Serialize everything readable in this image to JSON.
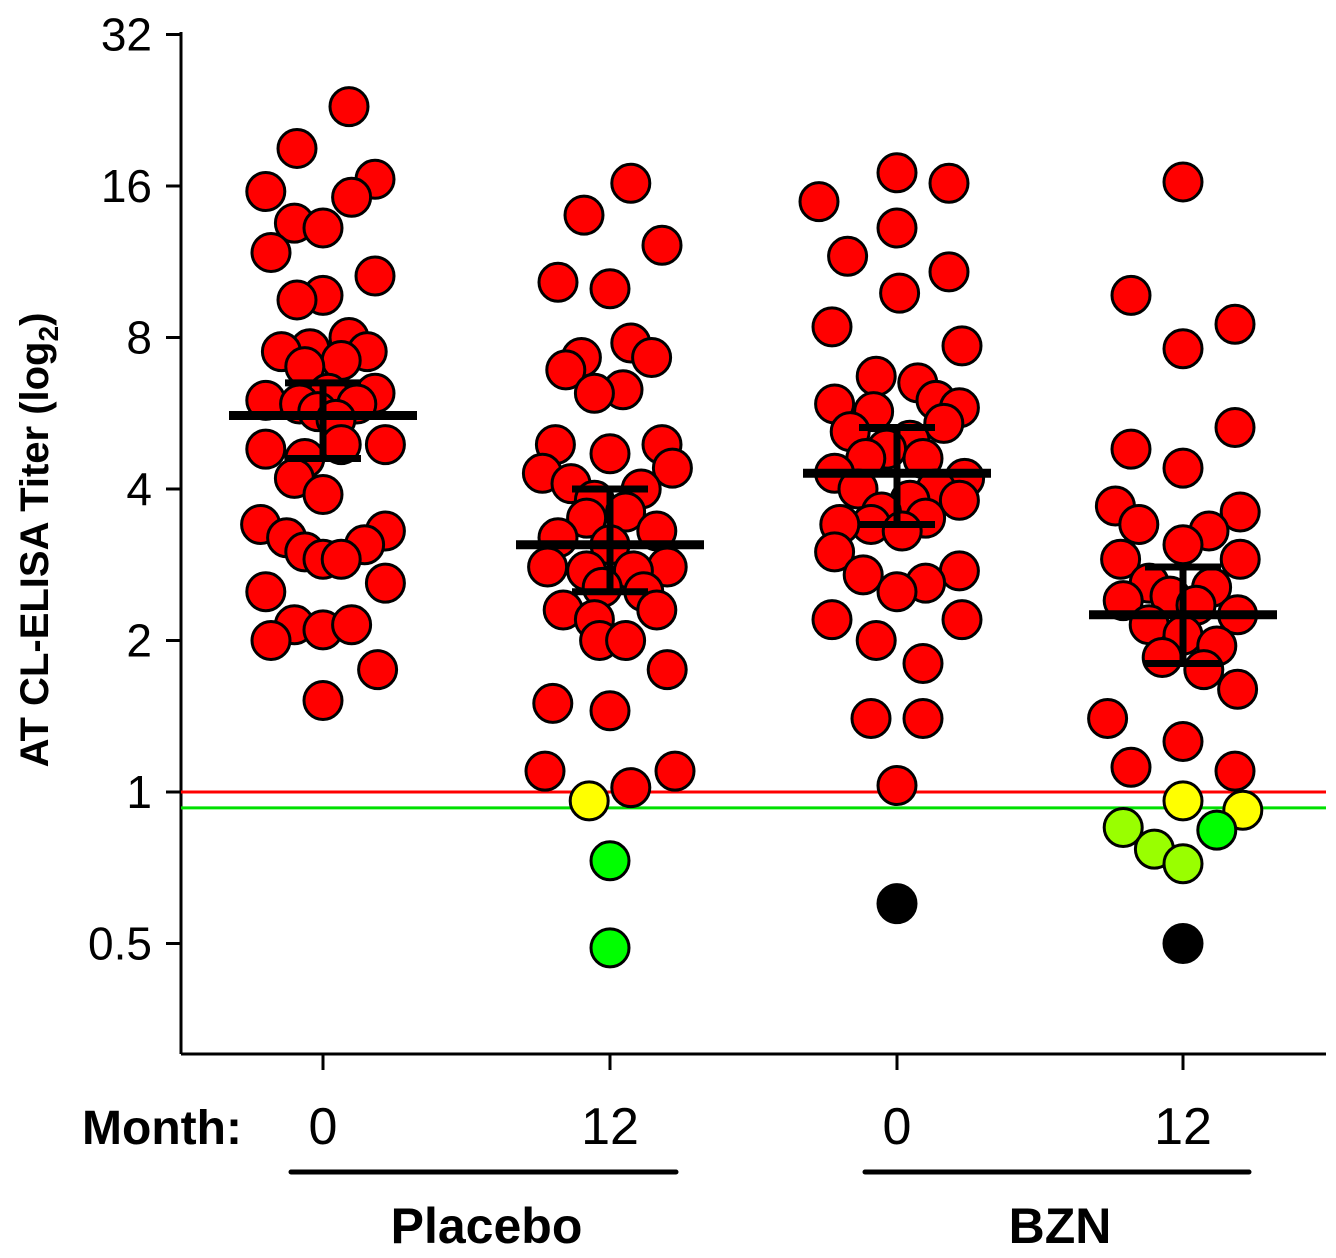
{
  "chart_data": {
    "type": "scatter",
    "scale": "log2",
    "ylabel_main": "AT CL-ELISA Titer (log",
    "ylabel_sub": "2",
    "ylabel_close": ")",
    "xlabel_prefix": "Month:",
    "yticks": [
      0.5,
      1,
      2,
      4,
      8,
      16,
      32
    ],
    "ytick_labels": [
      "0.5",
      "1",
      "2",
      "4",
      "8",
      "16",
      "32"
    ],
    "ylim": [
      0.3,
      32
    ],
    "thresholds": [
      {
        "value": 1.0,
        "color": "#ff0000"
      },
      {
        "value": 0.93,
        "color": "#00e000"
      }
    ],
    "groups": [
      {
        "label": "Placebo",
        "columns": [
          0,
          1
        ]
      },
      {
        "label": "BZN",
        "columns": [
          2,
          3
        ]
      }
    ],
    "columns": [
      {
        "month": "0",
        "mean": 5.6,
        "err_hi": 6.5,
        "err_lo": 4.6,
        "points": [
          {
            "dx": 0.1,
            "y": 23.0,
            "c": "red"
          },
          {
            "dx": -0.1,
            "y": 19.0,
            "c": "red"
          },
          {
            "dx": 0.2,
            "y": 16.5,
            "c": "red"
          },
          {
            "dx": -0.22,
            "y": 15.6,
            "c": "red"
          },
          {
            "dx": 0.11,
            "y": 15.2,
            "c": "red"
          },
          {
            "dx": -0.11,
            "y": 13.5,
            "c": "red"
          },
          {
            "dx": 0.0,
            "y": 13.2,
            "c": "red"
          },
          {
            "dx": -0.2,
            "y": 11.8,
            "c": "red"
          },
          {
            "dx": 0.2,
            "y": 10.6,
            "c": "red"
          },
          {
            "dx": 0.0,
            "y": 9.7,
            "c": "red"
          },
          {
            "dx": -0.1,
            "y": 9.5,
            "c": "red"
          },
          {
            "dx": 0.1,
            "y": 8.0,
            "c": "red"
          },
          {
            "dx": -0.05,
            "y": 7.6,
            "c": "red"
          },
          {
            "dx": 0.17,
            "y": 7.5,
            "c": "red"
          },
          {
            "dx": -0.16,
            "y": 7.5,
            "c": "red"
          },
          {
            "dx": 0.07,
            "y": 7.2,
            "c": "red"
          },
          {
            "dx": -0.07,
            "y": 7.0,
            "c": "red"
          },
          {
            "dx": 0.2,
            "y": 6.2,
            "c": "red"
          },
          {
            "dx": -0.22,
            "y": 6.0,
            "c": "red"
          },
          {
            "dx": 0.02,
            "y": 6.2,
            "c": "red"
          },
          {
            "dx": -0.09,
            "y": 5.9,
            "c": "red"
          },
          {
            "dx": 0.13,
            "y": 5.9,
            "c": "red"
          },
          {
            "dx": -0.02,
            "y": 5.7,
            "c": "red"
          },
          {
            "dx": 0.05,
            "y": 5.5,
            "c": "red"
          },
          {
            "dx": 0.24,
            "y": 4.9,
            "c": "red"
          },
          {
            "dx": -0.22,
            "y": 4.8,
            "c": "red"
          },
          {
            "dx": 0.07,
            "y": 4.9,
            "c": "red"
          },
          {
            "dx": -0.07,
            "y": 4.6,
            "c": "red"
          },
          {
            "dx": -0.11,
            "y": 4.2,
            "c": "red"
          },
          {
            "dx": 0.0,
            "y": 3.9,
            "c": "red"
          },
          {
            "dx": -0.24,
            "y": 3.4,
            "c": "red"
          },
          {
            "dx": 0.24,
            "y": 3.3,
            "c": "red"
          },
          {
            "dx": -0.14,
            "y": 3.2,
            "c": "red"
          },
          {
            "dx": 0.16,
            "y": 3.1,
            "c": "red"
          },
          {
            "dx": -0.07,
            "y": 3.0,
            "c": "red"
          },
          {
            "dx": 0.0,
            "y": 2.9,
            "c": "red"
          },
          {
            "dx": 0.07,
            "y": 2.9,
            "c": "red"
          },
          {
            "dx": -0.22,
            "y": 2.5,
            "c": "red"
          },
          {
            "dx": 0.24,
            "y": 2.6,
            "c": "red"
          },
          {
            "dx": -0.11,
            "y": 2.15,
            "c": "red"
          },
          {
            "dx": 0.0,
            "y": 2.1,
            "c": "red"
          },
          {
            "dx": 0.11,
            "y": 2.15,
            "c": "red"
          },
          {
            "dx": -0.2,
            "y": 2.0,
            "c": "red"
          },
          {
            "dx": 0.21,
            "y": 1.75,
            "c": "red"
          },
          {
            "dx": 0.0,
            "y": 1.52,
            "c": "red"
          }
        ]
      },
      {
        "month": "12",
        "mean": 3.1,
        "err_hi": 4.0,
        "err_lo": 2.5,
        "points": [
          {
            "dx": 0.08,
            "y": 16.2,
            "c": "red"
          },
          {
            "dx": -0.1,
            "y": 14.0,
            "c": "red"
          },
          {
            "dx": 0.2,
            "y": 12.2,
            "c": "red"
          },
          {
            "dx": -0.2,
            "y": 10.3,
            "c": "red"
          },
          {
            "dx": 0.0,
            "y": 10.0,
            "c": "red"
          },
          {
            "dx": 0.08,
            "y": 7.8,
            "c": "red"
          },
          {
            "dx": -0.11,
            "y": 7.3,
            "c": "red"
          },
          {
            "dx": 0.16,
            "y": 7.3,
            "c": "red"
          },
          {
            "dx": -0.17,
            "y": 6.9,
            "c": "red"
          },
          {
            "dx": 0.05,
            "y": 6.3,
            "c": "red"
          },
          {
            "dx": -0.06,
            "y": 6.2,
            "c": "red"
          },
          {
            "dx": 0.2,
            "y": 4.9,
            "c": "red"
          },
          {
            "dx": -0.21,
            "y": 4.9,
            "c": "red"
          },
          {
            "dx": 0.0,
            "y": 4.7,
            "c": "red"
          },
          {
            "dx": 0.24,
            "y": 4.4,
            "c": "red"
          },
          {
            "dx": -0.26,
            "y": 4.3,
            "c": "red"
          },
          {
            "dx": -0.15,
            "y": 4.1,
            "c": "red"
          },
          {
            "dx": 0.12,
            "y": 4.0,
            "c": "red"
          },
          {
            "dx": -0.06,
            "y": 3.8,
            "c": "red"
          },
          {
            "dx": 0.06,
            "y": 3.6,
            "c": "red"
          },
          {
            "dx": -0.09,
            "y": 3.5,
            "c": "red"
          },
          {
            "dx": 0.18,
            "y": 3.3,
            "c": "red"
          },
          {
            "dx": -0.2,
            "y": 3.2,
            "c": "red"
          },
          {
            "dx": 0.0,
            "y": 3.1,
            "c": "red"
          },
          {
            "dx": -0.24,
            "y": 2.8,
            "c": "red"
          },
          {
            "dx": 0.22,
            "y": 2.8,
            "c": "red"
          },
          {
            "dx": -0.09,
            "y": 2.75,
            "c": "red"
          },
          {
            "dx": 0.09,
            "y": 2.75,
            "c": "red"
          },
          {
            "dx": -0.03,
            "y": 2.55,
            "c": "red"
          },
          {
            "dx": 0.13,
            "y": 2.5,
            "c": "red"
          },
          {
            "dx": -0.18,
            "y": 2.3,
            "c": "red"
          },
          {
            "dx": 0.18,
            "y": 2.3,
            "c": "red"
          },
          {
            "dx": -0.06,
            "y": 2.2,
            "c": "red"
          },
          {
            "dx": -0.04,
            "y": 2.0,
            "c": "red"
          },
          {
            "dx": 0.06,
            "y": 2.0,
            "c": "red"
          },
          {
            "dx": 0.22,
            "y": 1.75,
            "c": "red"
          },
          {
            "dx": -0.22,
            "y": 1.5,
            "c": "red"
          },
          {
            "dx": 0.0,
            "y": 1.45,
            "c": "red"
          },
          {
            "dx": -0.25,
            "y": 1.1,
            "c": "red"
          },
          {
            "dx": 0.25,
            "y": 1.1,
            "c": "red"
          },
          {
            "dx": 0.08,
            "y": 1.02,
            "c": "red"
          },
          {
            "dx": -0.08,
            "y": 0.96,
            "c": "yellow"
          },
          {
            "dx": 0.0,
            "y": 0.73,
            "c": "green"
          },
          {
            "dx": 0.0,
            "y": 0.49,
            "c": "green"
          }
        ]
      },
      {
        "month": "0",
        "mean": 4.3,
        "err_hi": 5.3,
        "err_lo": 3.4,
        "points": [
          {
            "dx": 0.0,
            "y": 17.0,
            "c": "red"
          },
          {
            "dx": 0.2,
            "y": 16.2,
            "c": "red"
          },
          {
            "dx": -0.3,
            "y": 14.9,
            "c": "red"
          },
          {
            "dx": 0.0,
            "y": 13.2,
            "c": "red"
          },
          {
            "dx": -0.19,
            "y": 11.6,
            "c": "red"
          },
          {
            "dx": 0.2,
            "y": 10.8,
            "c": "red"
          },
          {
            "dx": 0.01,
            "y": 9.8,
            "c": "red"
          },
          {
            "dx": -0.25,
            "y": 8.4,
            "c": "red"
          },
          {
            "dx": 0.25,
            "y": 7.7,
            "c": "red"
          },
          {
            "dx": -0.08,
            "y": 6.7,
            "c": "red"
          },
          {
            "dx": 0.08,
            "y": 6.5,
            "c": "red"
          },
          {
            "dx": 0.15,
            "y": 6.0,
            "c": "red"
          },
          {
            "dx": -0.24,
            "y": 5.9,
            "c": "red"
          },
          {
            "dx": 0.24,
            "y": 5.8,
            "c": "red"
          },
          {
            "dx": -0.09,
            "y": 5.7,
            "c": "red"
          },
          {
            "dx": 0.18,
            "y": 5.4,
            "c": "red"
          },
          {
            "dx": -0.18,
            "y": 5.2,
            "c": "red"
          },
          {
            "dx": 0.05,
            "y": 5.0,
            "c": "red"
          },
          {
            "dx": -0.04,
            "y": 4.8,
            "c": "red"
          },
          {
            "dx": 0.1,
            "y": 4.6,
            "c": "red"
          },
          {
            "dx": -0.12,
            "y": 4.6,
            "c": "red"
          },
          {
            "dx": 0.26,
            "y": 4.2,
            "c": "red"
          },
          {
            "dx": -0.24,
            "y": 4.3,
            "c": "red"
          },
          {
            "dx": 0.15,
            "y": 4.0,
            "c": "red"
          },
          {
            "dx": -0.15,
            "y": 4.0,
            "c": "red"
          },
          {
            "dx": 0.24,
            "y": 3.8,
            "c": "red"
          },
          {
            "dx": 0.05,
            "y": 3.8,
            "c": "red"
          },
          {
            "dx": -0.06,
            "y": 3.6,
            "c": "red"
          },
          {
            "dx": 0.11,
            "y": 3.5,
            "c": "red"
          },
          {
            "dx": -0.1,
            "y": 3.4,
            "c": "red"
          },
          {
            "dx": 0.02,
            "y": 3.3,
            "c": "red"
          },
          {
            "dx": -0.22,
            "y": 3.4,
            "c": "red"
          },
          {
            "dx": -0.24,
            "y": 3.0,
            "c": "red"
          },
          {
            "dx": 0.24,
            "y": 2.75,
            "c": "red"
          },
          {
            "dx": -0.13,
            "y": 2.7,
            "c": "red"
          },
          {
            "dx": 0.11,
            "y": 2.6,
            "c": "red"
          },
          {
            "dx": 0.0,
            "y": 2.5,
            "c": "red"
          },
          {
            "dx": -0.25,
            "y": 2.2,
            "c": "red"
          },
          {
            "dx": 0.25,
            "y": 2.2,
            "c": "red"
          },
          {
            "dx": -0.08,
            "y": 2.0,
            "c": "red"
          },
          {
            "dx": 0.1,
            "y": 1.8,
            "c": "red"
          },
          {
            "dx": -0.1,
            "y": 1.4,
            "c": "red"
          },
          {
            "dx": 0.1,
            "y": 1.4,
            "c": "red"
          },
          {
            "dx": 0.0,
            "y": 1.03,
            "c": "red"
          },
          {
            "dx": 0.0,
            "y": 0.6,
            "c": "black"
          }
        ]
      },
      {
        "month": "12",
        "mean": 2.25,
        "err_hi": 2.8,
        "err_lo": 1.8,
        "points": [
          {
            "dx": 0.0,
            "y": 16.3,
            "c": "red"
          },
          {
            "dx": -0.2,
            "y": 9.7,
            "c": "red"
          },
          {
            "dx": 0.2,
            "y": 8.5,
            "c": "red"
          },
          {
            "dx": 0.0,
            "y": 7.6,
            "c": "red"
          },
          {
            "dx": 0.2,
            "y": 5.3,
            "c": "red"
          },
          {
            "dx": -0.2,
            "y": 4.8,
            "c": "red"
          },
          {
            "dx": 0.0,
            "y": 4.4,
            "c": "red"
          },
          {
            "dx": -0.26,
            "y": 3.7,
            "c": "red"
          },
          {
            "dx": 0.22,
            "y": 3.6,
            "c": "red"
          },
          {
            "dx": -0.17,
            "y": 3.4,
            "c": "red"
          },
          {
            "dx": 0.1,
            "y": 3.3,
            "c": "red"
          },
          {
            "dx": 0.0,
            "y": 3.1,
            "c": "red"
          },
          {
            "dx": -0.24,
            "y": 2.9,
            "c": "red"
          },
          {
            "dx": 0.22,
            "y": 2.9,
            "c": "red"
          },
          {
            "dx": -0.13,
            "y": 2.6,
            "c": "red"
          },
          {
            "dx": 0.11,
            "y": 2.55,
            "c": "red"
          },
          {
            "dx": -0.05,
            "y": 2.45,
            "c": "red"
          },
          {
            "dx": 0.05,
            "y": 2.35,
            "c": "red"
          },
          {
            "dx": -0.23,
            "y": 2.4,
            "c": "red"
          },
          {
            "dx": 0.21,
            "y": 2.25,
            "c": "red"
          },
          {
            "dx": -0.13,
            "y": 2.15,
            "c": "red"
          },
          {
            "dx": 0.0,
            "y": 2.05,
            "c": "red"
          },
          {
            "dx": 0.13,
            "y": 1.95,
            "c": "red"
          },
          {
            "dx": -0.08,
            "y": 1.85,
            "c": "red"
          },
          {
            "dx": 0.08,
            "y": 1.75,
            "c": "red"
          },
          {
            "dx": 0.21,
            "y": 1.6,
            "c": "red"
          },
          {
            "dx": -0.29,
            "y": 1.4,
            "c": "red"
          },
          {
            "dx": 0.0,
            "y": 1.26,
            "c": "red"
          },
          {
            "dx": -0.2,
            "y": 1.12,
            "c": "red"
          },
          {
            "dx": 0.2,
            "y": 1.1,
            "c": "red"
          },
          {
            "dx": 0.0,
            "y": 0.96,
            "c": "yellow"
          },
          {
            "dx": 0.23,
            "y": 0.92,
            "c": "yellow"
          },
          {
            "dx": -0.23,
            "y": 0.85,
            "c": "lime"
          },
          {
            "dx": 0.13,
            "y": 0.84,
            "c": "green"
          },
          {
            "dx": -0.11,
            "y": 0.77,
            "c": "lime"
          },
          {
            "dx": 0.0,
            "y": 0.72,
            "c": "lime"
          },
          {
            "dx": 0.0,
            "y": 0.5,
            "c": "black"
          }
        ]
      }
    ]
  },
  "colors": {
    "red": "#ff0000",
    "yellow": "#ffff00",
    "green": "#00ff00",
    "lime": "#99ff00",
    "black": "#000000"
  }
}
